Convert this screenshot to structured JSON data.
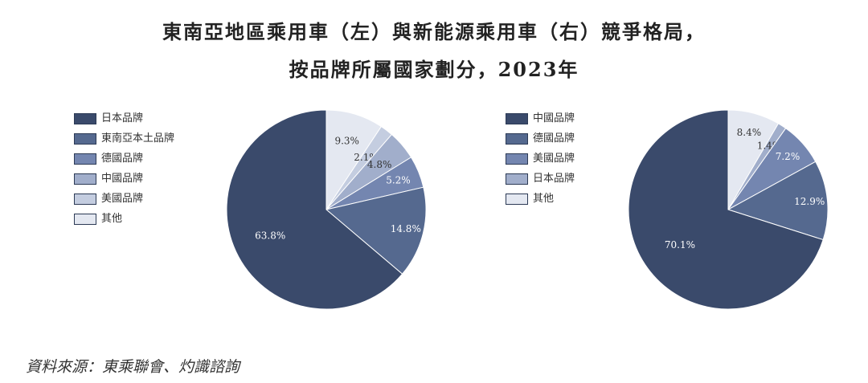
{
  "title": {
    "line1": "東南亞地區乘用車（左）與新能源乘用車（右）競爭格局，",
    "line2": "按品牌所屬國家劃分，2023年"
  },
  "source": "資料來源：東乘聯會、灼識諮詢",
  "chart_data": [
    {
      "type": "pie",
      "categories": [
        "日本品牌",
        "東南亞本土品牌",
        "德國品牌",
        "中國品牌",
        "美國品牌",
        "其他"
      ],
      "values": [
        63.8,
        14.8,
        5.2,
        4.8,
        2.1,
        9.3
      ],
      "data_labels": [
        "63.8%",
        "14.8%",
        "5.2%",
        "4.8%",
        "2.1%",
        "9.3%"
      ],
      "colors": [
        "#3a4a6b",
        "#55698f",
        "#7486b0",
        "#a1aecb",
        "#c4cde0",
        "#e4e8f1"
      ],
      "legend": "left"
    },
    {
      "type": "pie",
      "categories": [
        "中國品牌",
        "德國品牌",
        "美國品牌",
        "日本品牌",
        "其他"
      ],
      "values": [
        70.1,
        12.9,
        7.2,
        1.4,
        8.4
      ],
      "data_labels": [
        "70.1%",
        "12.9%",
        "7.2%",
        "1.4%",
        "8.4%"
      ],
      "colors": [
        "#3a4a6b",
        "#55698f",
        "#7486b0",
        "#a1aecb",
        "#e4e8f1"
      ],
      "legend": "left"
    }
  ]
}
